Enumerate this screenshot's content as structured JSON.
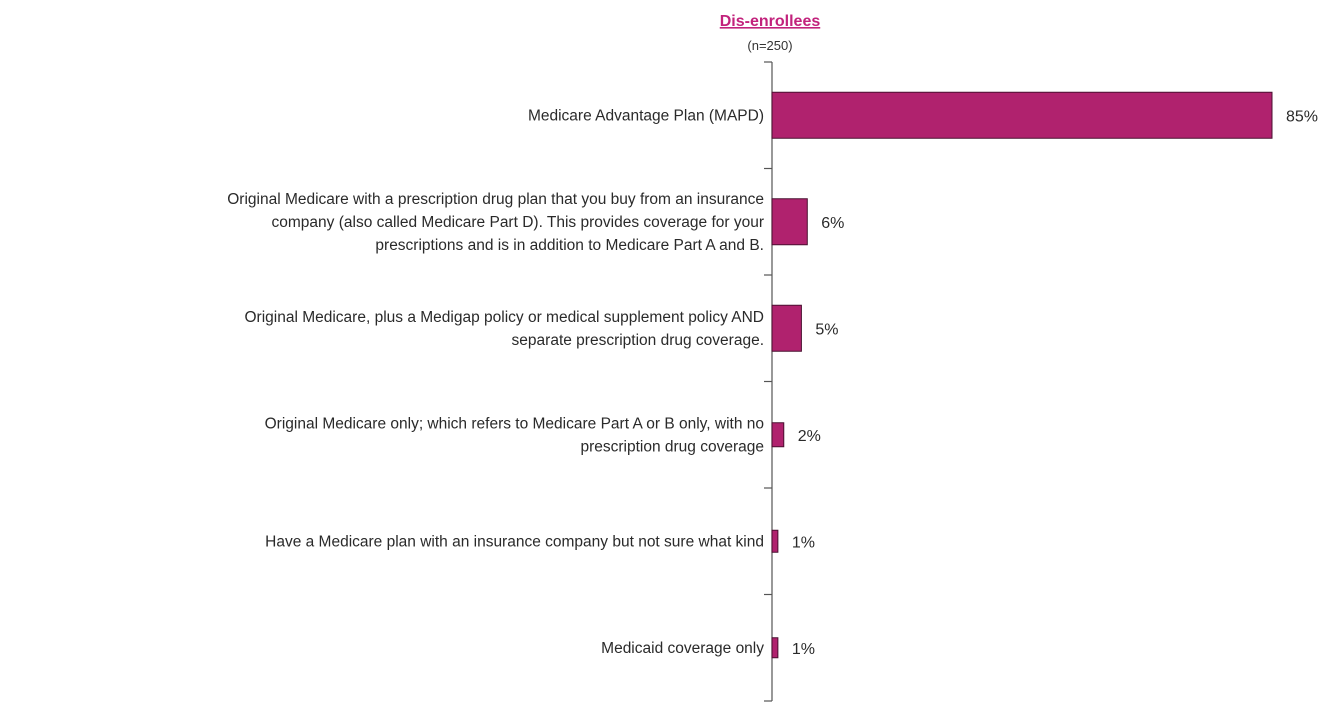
{
  "chart_data": {
    "type": "bar",
    "orientation": "horizontal",
    "title": "Dis-enrollees",
    "subtitle": "(n=250)",
    "categories": [
      "Medicare Advantage Plan (MAPD)",
      "Original Medicare with a prescription drug plan that you buy from an insurance company (also called Medicare Part D).  This provides coverage for your prescriptions and is in addition to Medicare Part A and B.",
      "Original Medicare, plus a Medigap policy or medical supplement policy AND separate prescription drug coverage.",
      "Original Medicare only; which refers to Medicare Part A or B only, with no prescription drug coverage",
      "Have a Medicare plan with an insurance company but not sure what kind",
      "Medicaid coverage only"
    ],
    "category_lines": [
      [
        "Medicare Advantage Plan (MAPD)"
      ],
      [
        "Original Medicare with a prescription drug plan that you buy from an insurance",
        "company (also called Medicare Part D).  This provides coverage for your",
        "prescriptions and is in addition to Medicare Part A and B."
      ],
      [
        "Original Medicare, plus a Medigap policy or medical supplement policy AND",
        "separate prescription drug coverage."
      ],
      [
        "Original Medicare only; which refers to Medicare Part A or B only, with no",
        "prescription drug coverage"
      ],
      [
        "Have a Medicare plan with an insurance company but not sure what kind"
      ],
      [
        "Medicaid coverage only"
      ]
    ],
    "values": [
      85,
      6,
      5,
      2,
      1,
      1
    ],
    "value_labels": [
      "85%",
      "6%",
      "5%",
      "2%",
      "1%",
      "1%"
    ],
    "xlim": [
      0,
      85
    ],
    "grid": false,
    "legend": "none",
    "colors": {
      "bar": "#b0226e",
      "bar_edge": "#4a1030",
      "title": "#c2227c",
      "axis": "#555555"
    }
  }
}
